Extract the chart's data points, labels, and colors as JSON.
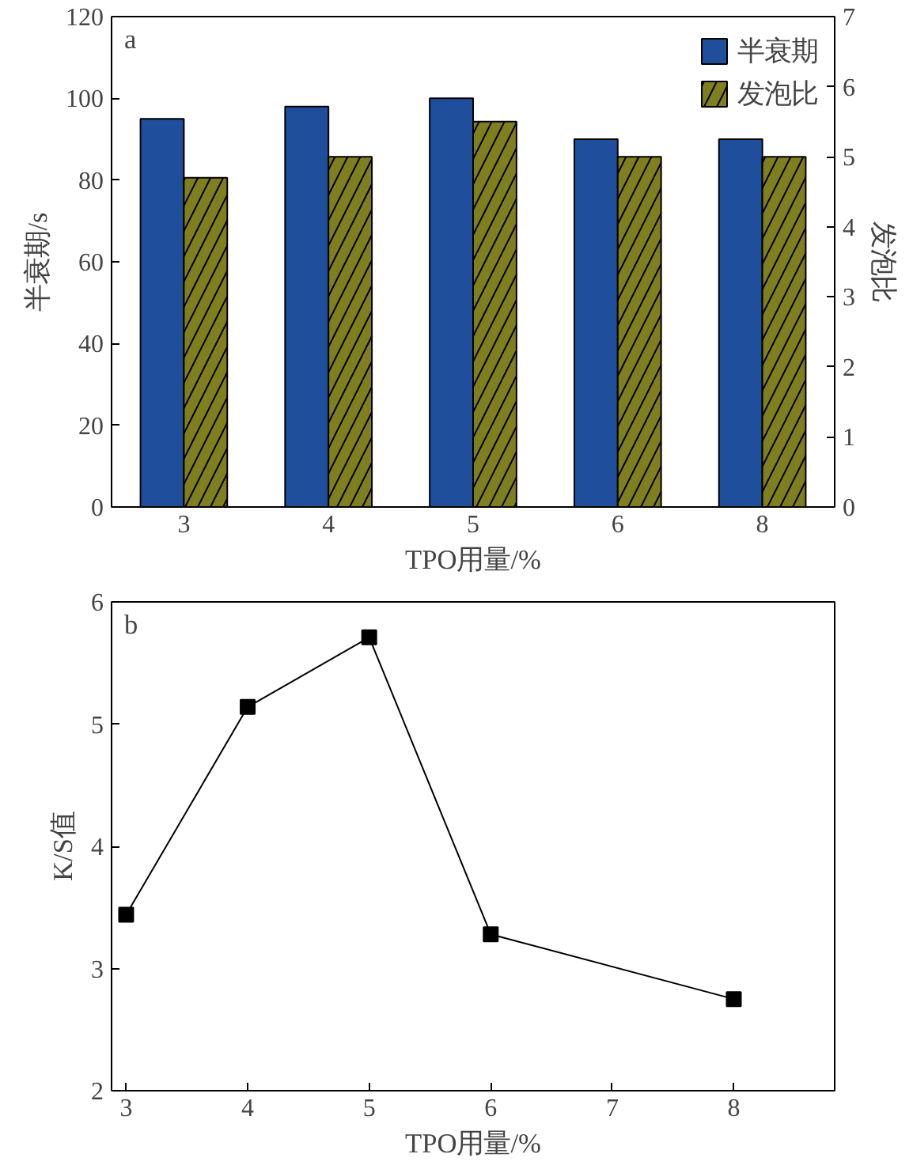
{
  "chart_data": [
    {
      "type": "bar",
      "categories": [
        "3",
        "4",
        "5",
        "6",
        "8"
      ],
      "xlabel": "TPO用量/%",
      "ylabel": "半衰期/s",
      "y2label": "发泡比",
      "series": [
        {
          "name": "半衰期",
          "color": "#1f4e9c",
          "values": [
            95,
            98,
            100,
            90,
            90
          ]
        },
        {
          "name": "发泡比",
          "color": "#7f7f1f",
          "axis": "y2",
          "values": [
            4.7,
            5.0,
            5.5,
            5.0,
            5.0
          ]
        }
      ],
      "ylim": [
        0,
        120
      ],
      "yticks": [
        0,
        20,
        40,
        60,
        80,
        100,
        120
      ],
      "y2lim": [
        0,
        7
      ],
      "y2ticks": [
        0,
        1,
        2,
        3,
        4,
        5,
        6,
        7
      ],
      "annotations": [
        "a"
      ],
      "legend": "top right",
      "grid": false
    },
    {
      "type": "line",
      "x": [
        3,
        4,
        5,
        6,
        8
      ],
      "values": [
        3.44,
        5.14,
        5.71,
        3.28,
        2.75
      ],
      "color": "#000000",
      "xlabel": "TPO用量/%",
      "ylabel": "K/S值",
      "xlim": [
        2.88,
        8.83
      ],
      "xticks": [
        3,
        4,
        5,
        6,
        7,
        8
      ],
      "ylim": [
        2,
        6
      ],
      "yticks": [
        2,
        3,
        4,
        5,
        6
      ],
      "marker": "square",
      "line_style": "solid",
      "annotations": [
        "b"
      ],
      "grid": false
    }
  ]
}
